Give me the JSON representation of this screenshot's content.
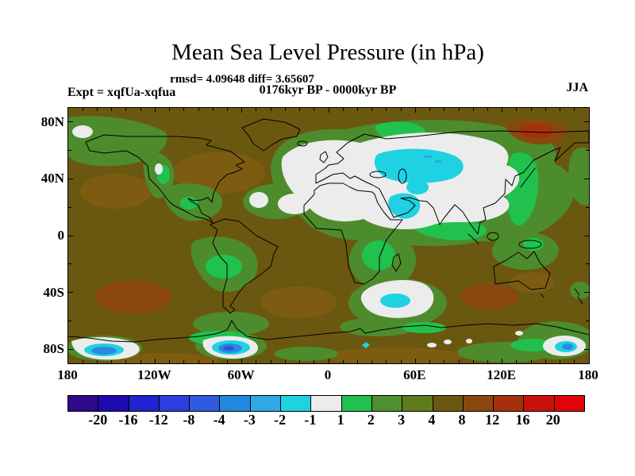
{
  "header": {
    "title": "Mean Sea Level Pressure (in hPa)",
    "stats_line": "rmsd= 4.09648 diff= 3.65607",
    "experiment": "Expt = xqfUa-xqfua",
    "period": "0176kyr BP - 0000kyr BP",
    "season": "JJA"
  },
  "chart_data": {
    "type": "heatmap",
    "subtype": "filled-contour-world-map",
    "title": "Mean Sea Level Pressure (in hPa)",
    "units": "hPa",
    "statistics": {
      "rmsd": 4.09648,
      "diff": 3.65607
    },
    "experiment": "xqfUa-xqfua",
    "period": "0176kyr BP - 0000kyr BP",
    "season": "JJA",
    "projection": "equirectangular",
    "x_axis": {
      "range_deg": [
        -180,
        180
      ],
      "minor_tick_step_deg": 10,
      "ticks": [
        {
          "lon": -180,
          "label": "180"
        },
        {
          "lon": -120,
          "label": "120W"
        },
        {
          "lon": -60,
          "label": "60W"
        },
        {
          "lon": 0,
          "label": "0"
        },
        {
          "lon": 60,
          "label": "60E"
        },
        {
          "lon": 120,
          "label": "120E"
        },
        {
          "lon": 180,
          "label": "180"
        }
      ]
    },
    "y_axis": {
      "range_deg": [
        -90,
        90
      ],
      "minor_tick_step_deg": 20,
      "ticks": [
        {
          "lat": 80,
          "label": "80N"
        },
        {
          "lat": 40,
          "label": "40N"
        },
        {
          "lat": 0,
          "label": "0"
        },
        {
          "lat": -40,
          "label": "40S"
        },
        {
          "lat": -80,
          "label": "80S"
        }
      ]
    },
    "colorbar": {
      "levels": [
        -20,
        -16,
        -12,
        -8,
        -4,
        -3,
        -2,
        -1,
        1,
        2,
        3,
        4,
        8,
        12,
        16,
        20
      ],
      "labels": [
        "-20",
        "-16",
        "-12",
        "-8",
        "-4",
        "-3",
        "-2",
        "-1",
        "1",
        "2",
        "3",
        "4",
        "8",
        "12",
        "16",
        "20"
      ],
      "colors": [
        "#31098c",
        "#1d0bb0",
        "#2023cf",
        "#2a3fdd",
        "#2f5be0",
        "#2388dd",
        "#2fa8e4",
        "#1fd2e2",
        "#ececec",
        "#21c14d",
        "#4f8f2f",
        "#5f7b1e",
        "#6b5810",
        "#8a4810",
        "#a5300c",
        "#c9120c",
        "#df040a"
      ]
    },
    "features": [
      {
        "region": "Background over most oceans and continents",
        "value_hpa": "+4 to +8"
      },
      {
        "region": "Europe, North Atlantic and Central Asia (30W-120E, 30-65N)",
        "value_hpa": "-1 to +1 (white) with -1 to -3 core over Kazakhstan/Central Asia"
      },
      {
        "region": "Arabian Peninsula / Middle East",
        "value_hpa": "-1 to -2"
      },
      {
        "region": "Arctic Ocean north of East Siberia (~75N, 130-155E)",
        "value_hpa": "+8 to +16"
      },
      {
        "region": "South Pacific (~45S, 135W)",
        "value_hpa": "+8 to +12"
      },
      {
        "region": "South Indian Ocean (~42S, 110E)",
        "value_hpa": "+8 to +12"
      },
      {
        "region": "Southern Ocean south of Africa (~48S, 30-60E)",
        "value_hpa": "-1 to -2 (white oval with cyan core)"
      },
      {
        "region": "Antarctic coast blobs near 150W, 60W and 160E",
        "value_hpa": "-2 to -8 (white/cyan/blue cores)"
      },
      {
        "region": "Amazon, southern Africa, maritime continent, NW North America",
        "value_hpa": "+1 to +2"
      }
    ]
  }
}
